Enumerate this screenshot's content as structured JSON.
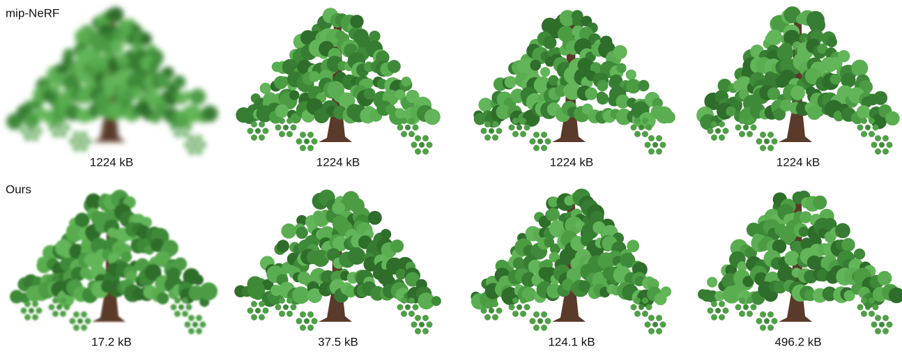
{
  "rows": [
    {
      "label": "mip-NeRF",
      "captions": [
        "1224 kB",
        "1224 kB",
        "1224 kB",
        "1224 kB"
      ]
    },
    {
      "label": "Ours",
      "captions": [
        "17.2 kB",
        "37.5 kB",
        "124.1 kB",
        "496.2 kB"
      ]
    }
  ]
}
